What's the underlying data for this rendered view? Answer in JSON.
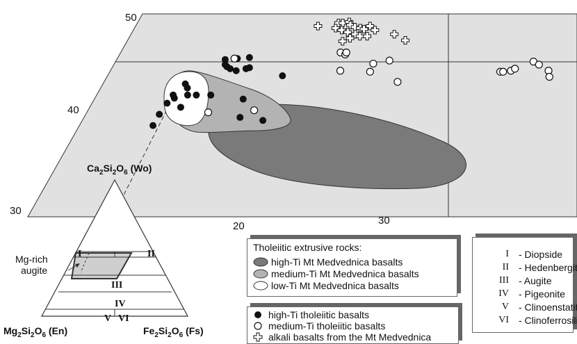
{
  "chart_data": {
    "type": "scatter",
    "diagram": "pyroxene quadrilateral",
    "wo_ticks": [
      "50",
      "40",
      "30"
    ],
    "fs_ticks": [
      "20",
      "30"
    ],
    "apex_label": {
      "main": "Ca",
      "s1": "2",
      "mid": "Si",
      "s2": "2",
      "mid2": "O",
      "s3": "6",
      "tail": " (Wo)"
    },
    "left_label": {
      "main": "Mg",
      "s1": "2",
      "mid": "Si",
      "s2": "2",
      "mid2": "O",
      "s3": "6",
      "tail": " (En)"
    },
    "right_label": {
      "main": "Fe",
      "s1": "2",
      "mid": "Si",
      "s2": "2",
      "mid2": "O",
      "s3": "6",
      "tail": " (Fs)"
    },
    "inset_annotation": [
      "Mg-rich",
      "augite"
    ],
    "fields": [
      "I",
      "II",
      "III",
      "IV",
      "V",
      "VI"
    ],
    "series": [
      {
        "name": "high-Ti tholeiitic basalts",
        "marker": "filled-circle",
        "points": [
          [
            13.2,
            45.5
          ],
          [
            13.4,
            45.0
          ],
          [
            13.6,
            44.8
          ],
          [
            13.9,
            44.6
          ],
          [
            14.4,
            44.4
          ],
          [
            14.0,
            45.6
          ],
          [
            14.8,
            45.7
          ],
          [
            15.0,
            44.6
          ],
          [
            15.2,
            44.7
          ],
          [
            17.8,
            43.9
          ],
          [
            11.4,
            43.1
          ],
          [
            11.7,
            42.7
          ],
          [
            12.6,
            42.0
          ],
          [
            11.0,
            42.0
          ],
          [
            11.2,
            41.7
          ],
          [
            10.9,
            41.2
          ],
          [
            12.0,
            42.0
          ],
          [
            13.6,
            42.0
          ],
          [
            16.0,
            41.6
          ],
          [
            12.0,
            40.8
          ],
          [
            10.8,
            40.1
          ],
          [
            16.5,
            39.8
          ],
          [
            18.2,
            39.5
          ],
          [
            10.8,
            39.0
          ]
        ]
      },
      {
        "name": "medium-Ti tholeiitic basalts",
        "marker": "open-circle",
        "points": [
          [
            13.8,
            45.6
          ],
          [
            20.9,
            46.2
          ],
          [
            21.3,
            46.0
          ],
          [
            21.3,
            46.2
          ],
          [
            23.6,
            45.1
          ],
          [
            24.6,
            45.4
          ],
          [
            21.6,
            44.4
          ],
          [
            23.7,
            44.3
          ],
          [
            26.0,
            43.3
          ],
          [
            32.7,
            44.3
          ],
          [
            32.9,
            44.3
          ],
          [
            33.4,
            44.4
          ],
          [
            33.6,
            44.6
          ],
          [
            34.6,
            45.3
          ],
          [
            35.1,
            45.0
          ],
          [
            36.0,
            44.4
          ],
          [
            36.3,
            43.8
          ],
          [
            14.1,
            40.3
          ],
          [
            17.2,
            40.5
          ]
        ]
      },
      {
        "name": "alkali basalts from the Mt Medvednica",
        "marker": "plus",
        "points": [
          [
            18.3,
            48.8
          ],
          [
            19.6,
            49.1
          ],
          [
            19.9,
            49.1
          ],
          [
            20.3,
            49.2
          ],
          [
            20.5,
            48.9
          ],
          [
            20.9,
            48.7
          ],
          [
            21.3,
            48.6
          ],
          [
            19.6,
            48.6
          ],
          [
            20.1,
            48.4
          ],
          [
            20.6,
            48.2
          ],
          [
            21.6,
            48.5
          ],
          [
            21.9,
            48.8
          ],
          [
            22.4,
            48.4
          ],
          [
            21.2,
            48.0
          ],
          [
            21.6,
            47.8
          ],
          [
            22.1,
            47.8
          ],
          [
            21.0,
            47.6
          ],
          [
            20.6,
            47.3
          ],
          [
            23.9,
            48.0
          ],
          [
            24.9,
            47.4
          ]
        ]
      }
    ],
    "regions": [
      {
        "name": "high-Ti Mt Medvednica basalts",
        "fill": "#7a7a7a"
      },
      {
        "name": "medium-Ti Mt Medvednica basalts",
        "fill": "#b3b3b3"
      },
      {
        "name": "low-Ti Mt Medvednica basalts",
        "fill": "#ffffff"
      }
    ],
    "plot_fill": "#e1e1e1"
  },
  "legend_rocks": {
    "title": "Tholeiitic extrusive rocks:",
    "items": [
      "high-Ti Mt Medvednica basalts",
      "medium-Ti Mt Medvednica basalts",
      "low-Ti Mt Medvednica basalts"
    ]
  },
  "legend_symbols": {
    "items": [
      "high-Ti tholeiitic basalts",
      "medium-Ti tholeiitic basalts",
      "alkali basalts from the Mt Medvednica"
    ]
  },
  "legend_roman": {
    "items": [
      {
        "num": "I",
        "name": "- Diopside"
      },
      {
        "num": "II",
        "name": "- Hedenbergite"
      },
      {
        "num": "III",
        "name": "- Augite"
      },
      {
        "num": "IV",
        "name": "- Pigeonite"
      },
      {
        "num": "V",
        "name": "- Clinoenstatite"
      },
      {
        "num": "VI",
        "name": "- Clinoferrosilite"
      }
    ]
  }
}
